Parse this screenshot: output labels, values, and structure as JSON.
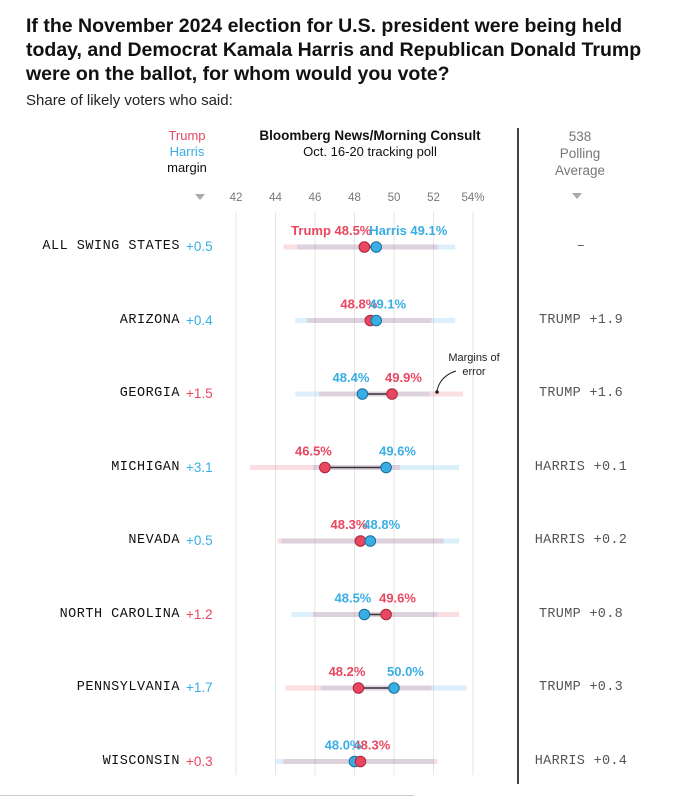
{
  "title": "If the November 2024 election for U.S. president were being held today, and Democrat Kamala Harris and Republican Donald Trump were on the ballot, for whom would you vote?",
  "subtitle": "Share of likely voters who said:",
  "headers": {
    "margin_trump": "Trump",
    "margin_harris": "Harris",
    "margin_label": "margin",
    "poll_title": "Bloomberg News/Morning Consult",
    "poll_dates": "Oct. 16-20 tracking poll",
    "avg_line1": "538",
    "avg_line2": "Polling",
    "avg_line3": "Average"
  },
  "annotation": {
    "line1": "Margins of",
    "line2": "error"
  },
  "colors": {
    "trump": "#e8475f",
    "harris": "#38aee5",
    "connector": "#333333"
  },
  "chart_data": {
    "type": "scatter",
    "x_ticks": [
      "42",
      "44",
      "46",
      "48",
      "50",
      "52",
      "54%"
    ],
    "xlim": [
      42,
      54
    ],
    "rows": [
      {
        "state": "ALL SWING STATES",
        "margin": "+0.5",
        "leader": "harris",
        "trump": 48.5,
        "harris": 49.1,
        "trump_label": "Trump 48.5%",
        "harris_label": "Harris 49.1%",
        "avg": "–",
        "harris_moe": [
          45.1,
          53.1
        ],
        "trump_moe": [
          44.4,
          52.2
        ]
      },
      {
        "state": "ARIZONA",
        "margin": "+0.4",
        "leader": "harris",
        "trump": 48.8,
        "harris": 49.1,
        "trump_label": "48.8%",
        "harris_label": "49.1%",
        "avg": "TRUMP +1.9",
        "harris_moe": [
          45.0,
          53.1
        ],
        "trump_moe": [
          45.6,
          51.9
        ]
      },
      {
        "state": "GEORGIA",
        "margin": "+1.5",
        "leader": "trump",
        "trump": 49.9,
        "harris": 48.4,
        "trump_label": "49.9%",
        "harris_label": "48.4%",
        "avg": "TRUMP +1.6",
        "harris_moe": [
          45.0,
          51.8
        ],
        "trump_moe": [
          46.2,
          53.5
        ]
      },
      {
        "state": "MICHIGAN",
        "margin": "+3.1",
        "leader": "harris",
        "trump": 46.5,
        "harris": 49.6,
        "trump_label": "46.5%",
        "harris_label": "49.6%",
        "avg": "HARRIS +0.1",
        "harris_moe": [
          45.9,
          53.3
        ],
        "trump_moe": [
          42.7,
          50.3
        ]
      },
      {
        "state": "NEVADA",
        "margin": "+0.5",
        "leader": "harris",
        "trump": 48.3,
        "harris": 48.8,
        "trump_label": "48.3%",
        "harris_label": "48.8%",
        "avg": "HARRIS +0.2",
        "harris_moe": [
          44.3,
          53.3
        ],
        "trump_moe": [
          44.1,
          52.5
        ]
      },
      {
        "state": "NORTH CAROLINA",
        "margin": "+1.2",
        "leader": "trump",
        "trump": 49.6,
        "harris": 48.5,
        "trump_label": "49.6%",
        "harris_label": "48.5%",
        "avg": "TRUMP +0.8",
        "harris_moe": [
          44.8,
          52.2
        ],
        "trump_moe": [
          45.9,
          53.3
        ]
      },
      {
        "state": "PENNSYLVANIA",
        "margin": "+1.7",
        "leader": "harris",
        "trump": 48.2,
        "harris": 50.0,
        "trump_label": "48.2%",
        "harris_label": "50.0%",
        "avg": "TRUMP +0.3",
        "harris_moe": [
          46.3,
          53.7
        ],
        "trump_moe": [
          44.5,
          51.9
        ]
      },
      {
        "state": "WISCONSIN",
        "margin": "+0.3",
        "leader": "trump",
        "trump": 48.3,
        "harris": 48.0,
        "trump_label": "48.3%",
        "harris_label": "48.0%",
        "avg": "HARRIS +0.4",
        "harris_moe": [
          44.0,
          52.0
        ],
        "trump_moe": [
          44.4,
          52.2
        ]
      }
    ]
  }
}
